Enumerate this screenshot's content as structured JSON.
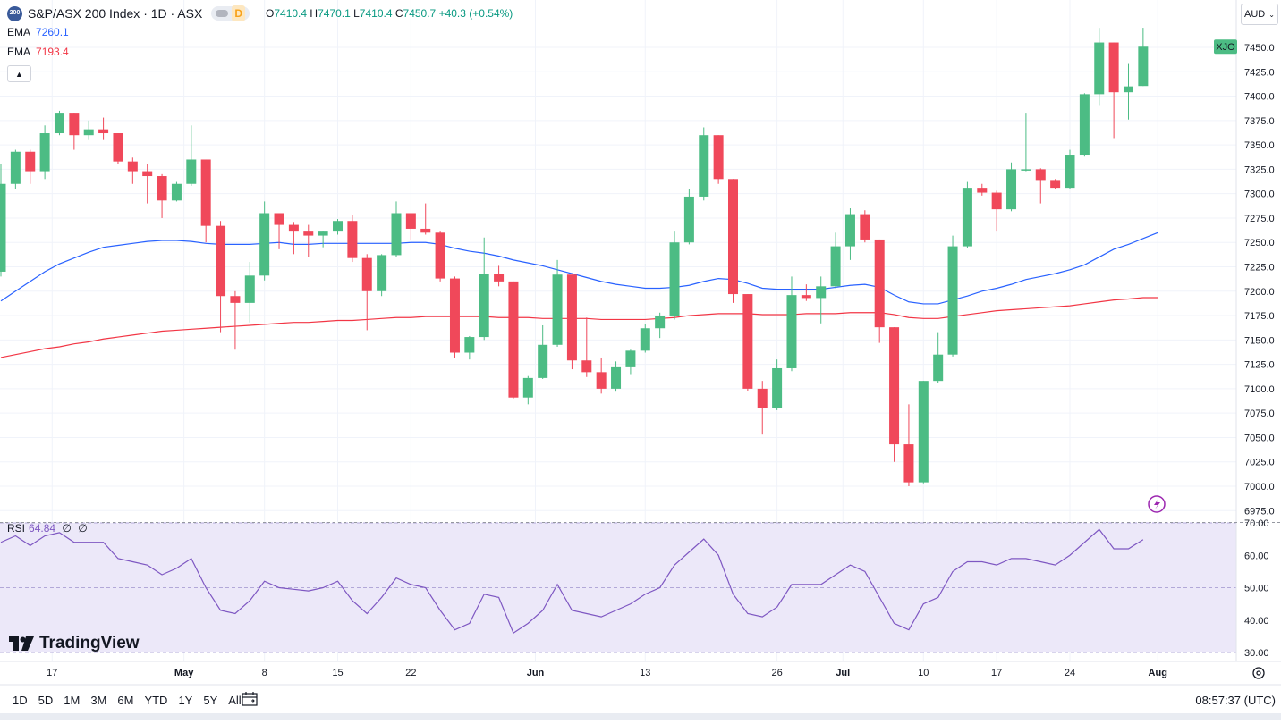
{
  "header": {
    "symbol_badge": "200",
    "symbol_title": "S&P/ASX 200 Index · 1D · ASX",
    "interval_badge": "D",
    "ohlc": {
      "o_label": "O",
      "o": "7410.4",
      "h_label": "H",
      "h": "7470.1",
      "l_label": "L",
      "l": "7410.4",
      "c_label": "C",
      "c": "7450.7",
      "change": "+40.3 (+0.54%)"
    },
    "ema1": {
      "label": "EMA",
      "value": "7260.1"
    },
    "ema2": {
      "label": "EMA",
      "value": "7193.4"
    },
    "currency": "AUD",
    "ticker_tag": "XJO"
  },
  "rsi": {
    "label": "RSI",
    "value": "64.84",
    "extra1": "∅",
    "extra2": "∅"
  },
  "bottom": {
    "ranges": [
      "1D",
      "5D",
      "1M",
      "3M",
      "6M",
      "YTD",
      "1Y",
      "5Y",
      "All"
    ],
    "clock": "08:57:37 (UTC)"
  },
  "brand": {
    "name": "TradingView"
  },
  "colors": {
    "up": "#4cbc84",
    "down": "#f0485a",
    "ema_fast": "#2962ff",
    "ema_slow": "#f23645",
    "rsi": "#7e57c2",
    "rsi_band": "#ece8f9"
  },
  "icons": {
    "flash": "lightning-icon",
    "settings": "gear-icon",
    "calendar": "calendar-icon",
    "collapse": "chevron-up-icon"
  },
  "chart_data": [
    {
      "type": "candlestick",
      "title": "S&P/ASX 200 Index · 1D · ASX",
      "y_ticks": [
        7450,
        7425,
        7400,
        7375,
        7350,
        7325,
        7300,
        7275,
        7250,
        7225,
        7200,
        7175,
        7150,
        7125,
        7100,
        7075,
        7050,
        7025,
        7000,
        6975
      ],
      "ylim": [
        6965,
        7485
      ],
      "x_tick_labels": [
        "17",
        "May",
        "8",
        "15",
        "22",
        "Jun",
        "13",
        "26",
        "Jul",
        "10",
        "17",
        "24",
        "Aug"
      ],
      "x_tick_index": [
        3.5,
        12.5,
        18,
        23,
        28,
        36.5,
        44,
        53,
        57.5,
        63,
        68,
        73,
        79
      ],
      "last_price_label": "XJO",
      "last_price": 7450.7,
      "candles": [
        {
          "o": 7220,
          "h": 7330,
          "l": 7215,
          "c": 7310
        },
        {
          "o": 7310,
          "h": 7345,
          "l": 7305,
          "c": 7343
        },
        {
          "o": 7343,
          "h": 7345,
          "l": 7310,
          "c": 7323
        },
        {
          "o": 7323,
          "h": 7370,
          "l": 7315,
          "c": 7362
        },
        {
          "o": 7362,
          "h": 7385,
          "l": 7360,
          "c": 7383
        },
        {
          "o": 7383,
          "h": 7383,
          "l": 7345,
          "c": 7360
        },
        {
          "o": 7360,
          "h": 7375,
          "l": 7355,
          "c": 7366
        },
        {
          "o": 7366,
          "h": 7378,
          "l": 7355,
          "c": 7362
        },
        {
          "o": 7362,
          "h": 7362,
          "l": 7330,
          "c": 7333
        },
        {
          "o": 7333,
          "h": 7337,
          "l": 7310,
          "c": 7323
        },
        {
          "o": 7323,
          "h": 7330,
          "l": 7290,
          "c": 7318
        },
        {
          "o": 7318,
          "h": 7320,
          "l": 7275,
          "c": 7293
        },
        {
          "o": 7293,
          "h": 7312,
          "l": 7292,
          "c": 7310
        },
        {
          "o": 7310,
          "h": 7370,
          "l": 7308,
          "c": 7335
        },
        {
          "o": 7335,
          "h": 7335,
          "l": 7250,
          "c": 7267
        },
        {
          "o": 7267,
          "h": 7272,
          "l": 7158,
          "c": 7195
        },
        {
          "o": 7195,
          "h": 7200,
          "l": 7140,
          "c": 7188
        },
        {
          "o": 7188,
          "h": 7230,
          "l": 7168,
          "c": 7216
        },
        {
          "o": 7216,
          "h": 7292,
          "l": 7211,
          "c": 7280
        },
        {
          "o": 7280,
          "h": 7280,
          "l": 7243,
          "c": 7268
        },
        {
          "o": 7268,
          "h": 7271,
          "l": 7238,
          "c": 7262
        },
        {
          "o": 7262,
          "h": 7268,
          "l": 7235,
          "c": 7257
        },
        {
          "o": 7257,
          "h": 7262,
          "l": 7245,
          "c": 7262
        },
        {
          "o": 7262,
          "h": 7274,
          "l": 7258,
          "c": 7272
        },
        {
          "o": 7272,
          "h": 7278,
          "l": 7230,
          "c": 7234
        },
        {
          "o": 7234,
          "h": 7238,
          "l": 7160,
          "c": 7200
        },
        {
          "o": 7200,
          "h": 7238,
          "l": 7195,
          "c": 7237
        },
        {
          "o": 7237,
          "h": 7292,
          "l": 7235,
          "c": 7280
        },
        {
          "o": 7280,
          "h": 7280,
          "l": 7253,
          "c": 7264
        },
        {
          "o": 7264,
          "h": 7290,
          "l": 7258,
          "c": 7260
        },
        {
          "o": 7260,
          "h": 7262,
          "l": 7210,
          "c": 7213
        },
        {
          "o": 7213,
          "h": 7215,
          "l": 7132,
          "c": 7137
        },
        {
          "o": 7137,
          "h": 7154,
          "l": 7130,
          "c": 7153
        },
        {
          "o": 7153,
          "h": 7255,
          "l": 7150,
          "c": 7218
        },
        {
          "o": 7218,
          "h": 7226,
          "l": 7205,
          "c": 7210
        },
        {
          "o": 7210,
          "h": 7210,
          "l": 7090,
          "c": 7091
        },
        {
          "o": 7091,
          "h": 7113,
          "l": 7084,
          "c": 7111
        },
        {
          "o": 7111,
          "h": 7165,
          "l": 7110,
          "c": 7145
        },
        {
          "o": 7145,
          "h": 7232,
          "l": 7143,
          "c": 7217
        },
        {
          "o": 7217,
          "h": 7217,
          "l": 7120,
          "c": 7129
        },
        {
          "o": 7129,
          "h": 7173,
          "l": 7112,
          "c": 7117
        },
        {
          "o": 7117,
          "h": 7132,
          "l": 7095,
          "c": 7100
        },
        {
          "o": 7100,
          "h": 7128,
          "l": 7097,
          "c": 7122
        },
        {
          "o": 7122,
          "h": 7140,
          "l": 7115,
          "c": 7139
        },
        {
          "o": 7139,
          "h": 7166,
          "l": 7137,
          "c": 7162
        },
        {
          "o": 7162,
          "h": 7178,
          "l": 7152,
          "c": 7175
        },
        {
          "o": 7175,
          "h": 7262,
          "l": 7171,
          "c": 7250
        },
        {
          "o": 7250,
          "h": 7305,
          "l": 7248,
          "c": 7297
        },
        {
          "o": 7297,
          "h": 7368,
          "l": 7293,
          "c": 7360
        },
        {
          "o": 7360,
          "h": 7360,
          "l": 7310,
          "c": 7315
        },
        {
          "o": 7315,
          "h": 7315,
          "l": 7188,
          "c": 7197
        },
        {
          "o": 7197,
          "h": 7197,
          "l": 7098,
          "c": 7100
        },
        {
          "o": 7100,
          "h": 7108,
          "l": 7053,
          "c": 7080
        },
        {
          "o": 7080,
          "h": 7130,
          "l": 7078,
          "c": 7121
        },
        {
          "o": 7121,
          "h": 7215,
          "l": 7118,
          "c": 7196
        },
        {
          "o": 7196,
          "h": 7207,
          "l": 7190,
          "c": 7193
        },
        {
          "o": 7193,
          "h": 7215,
          "l": 7167,
          "c": 7205
        },
        {
          "o": 7205,
          "h": 7260,
          "l": 7203,
          "c": 7246
        },
        {
          "o": 7246,
          "h": 7285,
          "l": 7232,
          "c": 7279
        },
        {
          "o": 7279,
          "h": 7283,
          "l": 7250,
          "c": 7253
        },
        {
          "o": 7253,
          "h": 7253,
          "l": 7147,
          "c": 7163
        },
        {
          "o": 7163,
          "h": 7163,
          "l": 7025,
          "c": 7043
        },
        {
          "o": 7043,
          "h": 7084,
          "l": 7000,
          "c": 7004
        },
        {
          "o": 7004,
          "h": 7108,
          "l": 7003,
          "c": 7108
        },
        {
          "o": 7108,
          "h": 7158,
          "l": 7106,
          "c": 7135
        },
        {
          "o": 7135,
          "h": 7257,
          "l": 7133,
          "c": 7246
        },
        {
          "o": 7246,
          "h": 7312,
          "l": 7244,
          "c": 7306
        },
        {
          "o": 7306,
          "h": 7310,
          "l": 7298,
          "c": 7301
        },
        {
          "o": 7301,
          "h": 7303,
          "l": 7262,
          "c": 7284
        },
        {
          "o": 7284,
          "h": 7332,
          "l": 7282,
          "c": 7325
        },
        {
          "o": 7325,
          "h": 7383,
          "l": 7323,
          "c": 7325
        },
        {
          "o": 7325,
          "h": 7326,
          "l": 7290,
          "c": 7314
        },
        {
          "o": 7314,
          "h": 7315,
          "l": 7305,
          "c": 7306
        },
        {
          "o": 7306,
          "h": 7345,
          "l": 7305,
          "c": 7340
        },
        {
          "o": 7340,
          "h": 7403,
          "l": 7338,
          "c": 7402
        },
        {
          "o": 7402,
          "h": 7470,
          "l": 7390,
          "c": 7455
        },
        {
          "o": 7455,
          "h": 7455,
          "l": 7357,
          "c": 7404
        },
        {
          "o": 7404,
          "h": 7433,
          "l": 7376,
          "c": 7410
        },
        {
          "o": 7410.4,
          "h": 7470.1,
          "l": 7410.4,
          "c": 7450.7
        }
      ],
      "ema_fast": [
        7190,
        7200,
        7210,
        7220,
        7228,
        7234,
        7240,
        7245,
        7247,
        7249,
        7251,
        7252,
        7252,
        7251,
        7249,
        7248,
        7248,
        7248,
        7249,
        7250,
        7248,
        7248,
        7249,
        7249,
        7249,
        7249,
        7249,
        7249,
        7250,
        7250,
        7248,
        7244,
        7241,
        7239,
        7236,
        7232,
        7229,
        7226,
        7222,
        7218,
        7214,
        7210,
        7207,
        7205,
        7203,
        7203,
        7204,
        7206,
        7210,
        7213,
        7212,
        7208,
        7203,
        7202,
        7202,
        7202,
        7202,
        7204,
        7206,
        7207,
        7204,
        7196,
        7189,
        7187,
        7187,
        7191,
        7195,
        7200,
        7203,
        7207,
        7212,
        7215,
        7218,
        7222,
        7227,
        7235,
        7243,
        7248,
        7254,
        7260
      ],
      "ema_slow": [
        7132,
        7135,
        7138,
        7141,
        7143,
        7146,
        7148,
        7151,
        7153,
        7155,
        7157,
        7159,
        7160,
        7161,
        7162,
        7163,
        7164,
        7165,
        7166,
        7167,
        7168,
        7168,
        7169,
        7170,
        7170,
        7171,
        7172,
        7173,
        7173,
        7174,
        7174,
        7174,
        7174,
        7174,
        7173,
        7173,
        7173,
        7172,
        7172,
        7172,
        7172,
        7171,
        7171,
        7171,
        7171,
        7172,
        7173,
        7175,
        7176,
        7177,
        7177,
        7177,
        7176,
        7176,
        7176,
        7177,
        7177,
        7177,
        7178,
        7178,
        7178,
        7176,
        7173,
        7172,
        7172,
        7174,
        7176,
        7178,
        7180,
        7181,
        7182,
        7183,
        7184,
        7185,
        7187,
        7189,
        7191,
        7192,
        7193.4,
        7193.4
      ]
    },
    {
      "type": "line",
      "title": "RSI",
      "y_ticks": [
        70,
        60,
        50,
        40,
        30
      ],
      "ylim": [
        29,
        71
      ],
      "band": [
        30,
        70
      ],
      "midline": 50,
      "values": [
        64,
        66,
        63,
        66,
        67,
        64,
        64,
        64,
        59,
        58,
        57,
        54,
        56,
        59,
        50,
        43,
        42,
        46,
        52,
        50,
        49.5,
        49,
        50,
        52,
        46,
        42,
        47,
        53,
        51,
        50,
        43,
        37,
        39,
        48,
        47,
        36,
        39,
        43,
        51,
        43,
        42,
        41,
        43,
        45,
        48,
        50,
        57,
        61,
        65,
        60,
        48,
        42,
        41,
        44,
        51,
        51,
        51,
        54,
        57,
        55,
        47,
        39,
        37,
        45,
        47,
        55,
        58,
        58,
        57,
        59,
        59,
        58,
        57,
        60,
        64,
        68,
        62,
        62,
        64.84
      ],
      "value_label": "64.84"
    }
  ]
}
